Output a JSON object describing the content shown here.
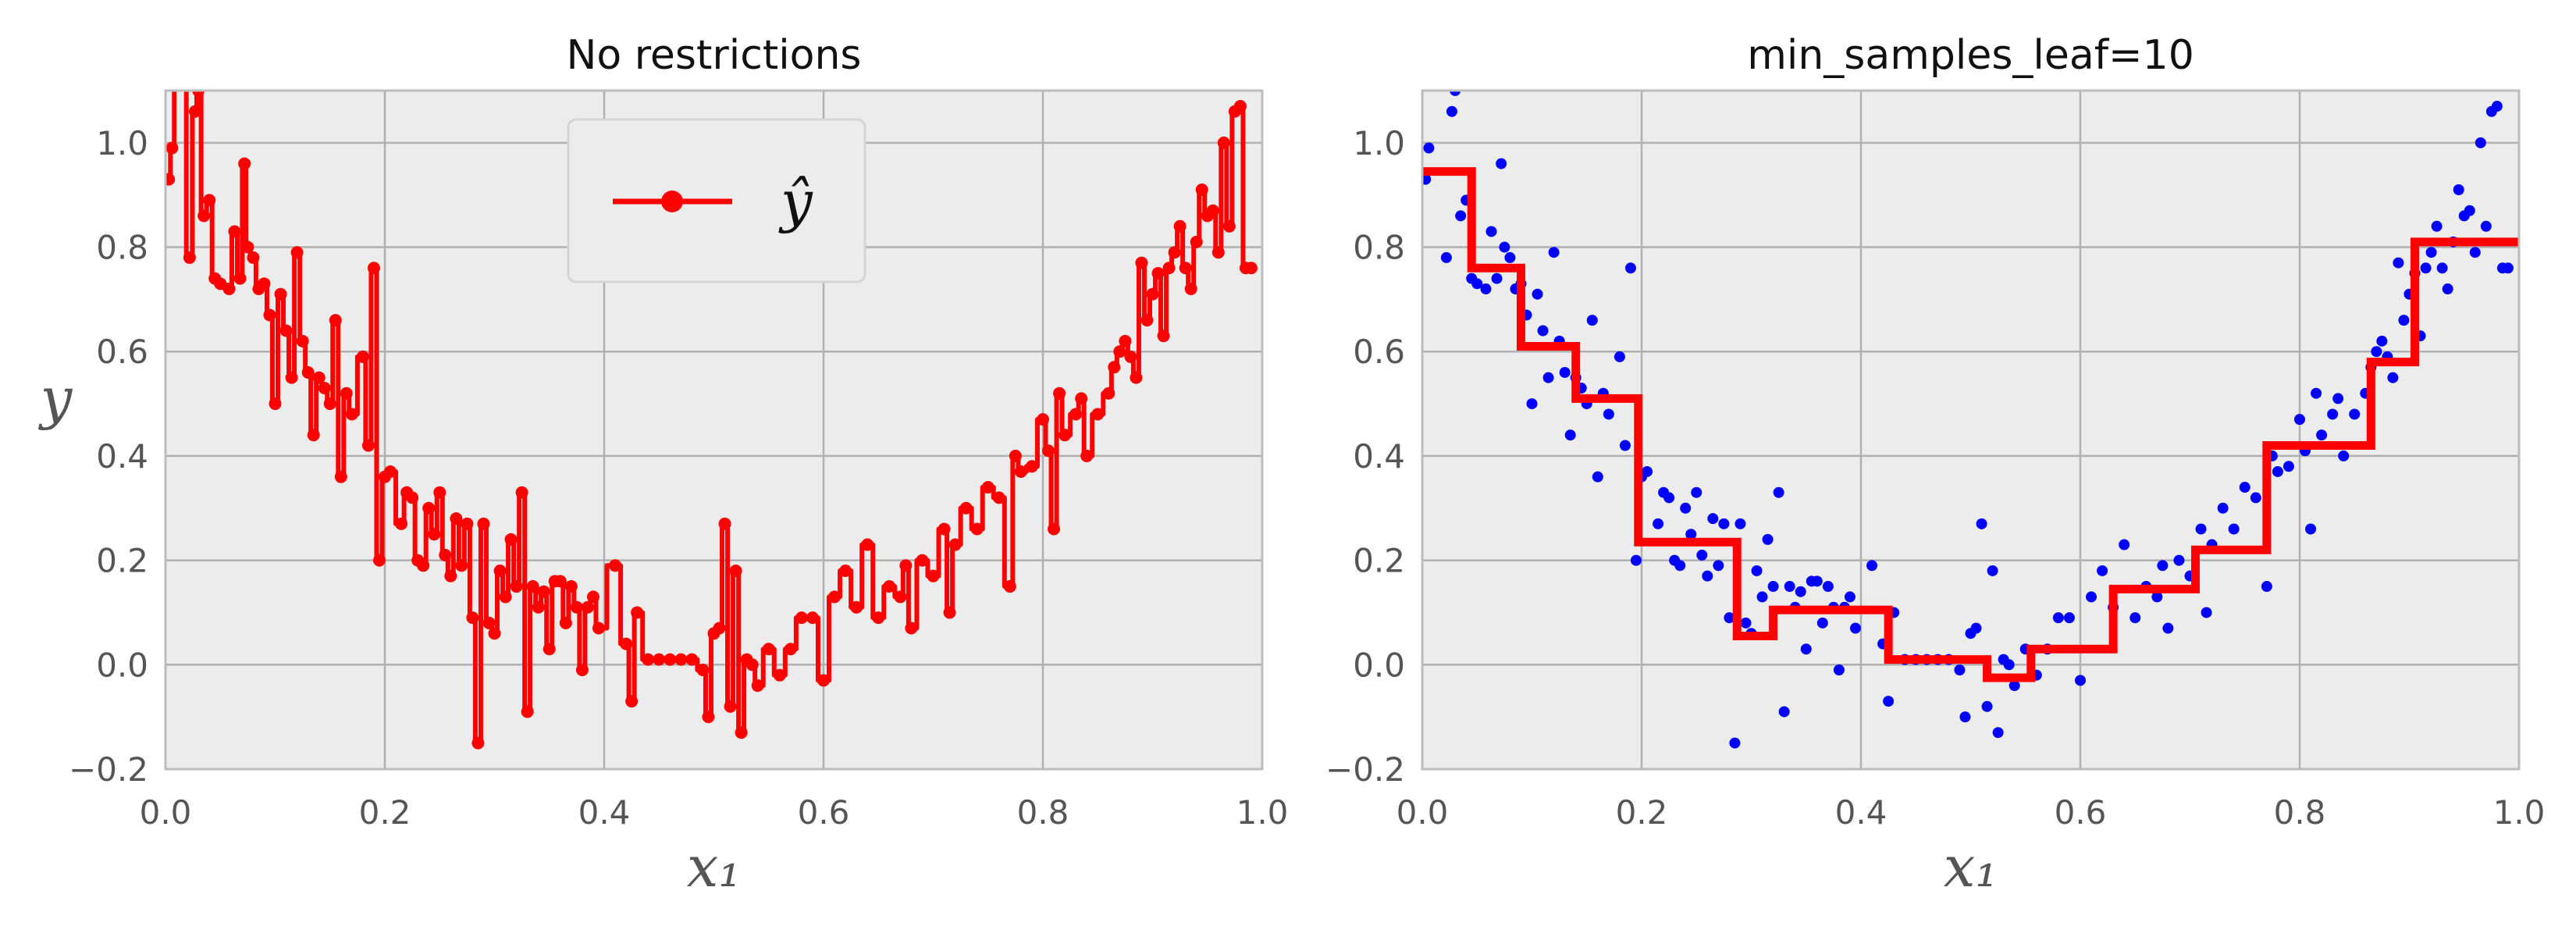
{
  "chart_data": [
    {
      "type": "scatter",
      "title": "No restrictions",
      "xlabel": "x₁",
      "ylabel": "y",
      "xlim": [
        0.0,
        1.0
      ],
      "ylim": [
        -0.2,
        1.1
      ],
      "xticks": [
        "0.0",
        "0.2",
        "0.4",
        "0.6",
        "0.8",
        "1.0"
      ],
      "xtick_values": [
        0.0,
        0.2,
        0.4,
        0.6,
        0.8,
        1.0
      ],
      "yticks": [
        "−0.2",
        "0.0",
        "0.2",
        "0.4",
        "0.6",
        "0.8",
        "1.0"
      ],
      "ytick_values": [
        -0.2,
        0.0,
        0.2,
        0.4,
        0.6,
        0.8,
        1.0
      ],
      "grid": true,
      "legend": {
        "placement": "upper-center",
        "entries": [
          "ŷ"
        ]
      },
      "scatter_color": "#0000ff",
      "line_color": "#ff0000",
      "points": [
        [
          0.003,
          0.93
        ],
        [
          0.006,
          0.99
        ],
        [
          0.01,
          1.12
        ],
        [
          0.016,
          1.15
        ],
        [
          0.022,
          0.78
        ],
        [
          0.027,
          1.06
        ],
        [
          0.03,
          1.1
        ],
        [
          0.035,
          0.86
        ],
        [
          0.04,
          0.89
        ],
        [
          0.045,
          0.74
        ],
        [
          0.05,
          0.73
        ],
        [
          0.058,
          0.72
        ],
        [
          0.063,
          0.83
        ],
        [
          0.068,
          0.74
        ],
        [
          0.072,
          0.96
        ],
        [
          0.075,
          0.8
        ],
        [
          0.08,
          0.78
        ],
        [
          0.085,
          0.72
        ],
        [
          0.09,
          0.73
        ],
        [
          0.095,
          0.67
        ],
        [
          0.1,
          0.5
        ],
        [
          0.105,
          0.71
        ],
        [
          0.11,
          0.64
        ],
        [
          0.115,
          0.55
        ],
        [
          0.12,
          0.79
        ],
        [
          0.125,
          0.62
        ],
        [
          0.13,
          0.56
        ],
        [
          0.135,
          0.44
        ],
        [
          0.14,
          0.55
        ],
        [
          0.145,
          0.53
        ],
        [
          0.15,
          0.5
        ],
        [
          0.155,
          0.66
        ],
        [
          0.16,
          0.36
        ],
        [
          0.165,
          0.52
        ],
        [
          0.17,
          0.48
        ],
        [
          0.18,
          0.59
        ],
        [
          0.185,
          0.42
        ],
        [
          0.19,
          0.76
        ],
        [
          0.195,
          0.2
        ],
        [
          0.2,
          0.36
        ],
        [
          0.205,
          0.37
        ],
        [
          0.215,
          0.27
        ],
        [
          0.22,
          0.33
        ],
        [
          0.225,
          0.32
        ],
        [
          0.23,
          0.2
        ],
        [
          0.235,
          0.19
        ],
        [
          0.24,
          0.3
        ],
        [
          0.245,
          0.25
        ],
        [
          0.25,
          0.33
        ],
        [
          0.255,
          0.21
        ],
        [
          0.26,
          0.17
        ],
        [
          0.265,
          0.28
        ],
        [
          0.27,
          0.19
        ],
        [
          0.275,
          0.27
        ],
        [
          0.28,
          0.09
        ],
        [
          0.285,
          -0.15
        ],
        [
          0.29,
          0.27
        ],
        [
          0.295,
          0.08
        ],
        [
          0.3,
          0.06
        ],
        [
          0.305,
          0.18
        ],
        [
          0.31,
          0.13
        ],
        [
          0.315,
          0.24
        ],
        [
          0.32,
          0.15
        ],
        [
          0.325,
          0.33
        ],
        [
          0.33,
          -0.09
        ],
        [
          0.335,
          0.15
        ],
        [
          0.34,
          0.11
        ],
        [
          0.345,
          0.14
        ],
        [
          0.35,
          0.03
        ],
        [
          0.355,
          0.16
        ],
        [
          0.36,
          0.16
        ],
        [
          0.365,
          0.08
        ],
        [
          0.37,
          0.15
        ],
        [
          0.375,
          0.11
        ],
        [
          0.38,
          -0.01
        ],
        [
          0.385,
          0.11
        ],
        [
          0.39,
          0.13
        ],
        [
          0.395,
          0.07
        ],
        [
          0.41,
          0.19
        ],
        [
          0.42,
          0.04
        ],
        [
          0.425,
          -0.07
        ],
        [
          0.43,
          0.1
        ],
        [
          0.44,
          0.01
        ],
        [
          0.45,
          0.01
        ],
        [
          0.46,
          0.01
        ],
        [
          0.47,
          0.01
        ],
        [
          0.48,
          0.01
        ],
        [
          0.49,
          -0.01
        ],
        [
          0.495,
          -0.1
        ],
        [
          0.5,
          0.06
        ],
        [
          0.505,
          0.07
        ],
        [
          0.51,
          0.27
        ],
        [
          0.515,
          -0.08
        ],
        [
          0.52,
          0.18
        ],
        [
          0.525,
          -0.13
        ],
        [
          0.53,
          0.01
        ],
        [
          0.535,
          0.0
        ],
        [
          0.54,
          -0.04
        ],
        [
          0.55,
          0.03
        ],
        [
          0.56,
          -0.02
        ],
        [
          0.57,
          0.03
        ],
        [
          0.58,
          0.09
        ],
        [
          0.59,
          0.09
        ],
        [
          0.6,
          -0.03
        ],
        [
          0.61,
          0.13
        ],
        [
          0.62,
          0.18
        ],
        [
          0.63,
          0.11
        ],
        [
          0.64,
          0.23
        ],
        [
          0.65,
          0.09
        ],
        [
          0.66,
          0.15
        ],
        [
          0.67,
          0.13
        ],
        [
          0.675,
          0.19
        ],
        [
          0.68,
          0.07
        ],
        [
          0.69,
          0.2
        ],
        [
          0.7,
          0.17
        ],
        [
          0.71,
          0.26
        ],
        [
          0.715,
          0.1
        ],
        [
          0.72,
          0.23
        ],
        [
          0.73,
          0.3
        ],
        [
          0.74,
          0.26
        ],
        [
          0.75,
          0.34
        ],
        [
          0.76,
          0.32
        ],
        [
          0.77,
          0.15
        ],
        [
          0.775,
          0.4
        ],
        [
          0.78,
          0.37
        ],
        [
          0.79,
          0.38
        ],
        [
          0.8,
          0.47
        ],
        [
          0.805,
          0.41
        ],
        [
          0.81,
          0.26
        ],
        [
          0.815,
          0.52
        ],
        [
          0.82,
          0.44
        ],
        [
          0.83,
          0.48
        ],
        [
          0.835,
          0.51
        ],
        [
          0.84,
          0.4
        ],
        [
          0.85,
          0.48
        ],
        [
          0.86,
          0.52
        ],
        [
          0.865,
          0.57
        ],
        [
          0.87,
          0.6
        ],
        [
          0.875,
          0.62
        ],
        [
          0.88,
          0.59
        ],
        [
          0.885,
          0.55
        ],
        [
          0.89,
          0.77
        ],
        [
          0.895,
          0.66
        ],
        [
          0.9,
          0.71
        ],
        [
          0.905,
          0.75
        ],
        [
          0.91,
          0.63
        ],
        [
          0.915,
          0.76
        ],
        [
          0.92,
          0.79
        ],
        [
          0.925,
          0.84
        ],
        [
          0.93,
          0.76
        ],
        [
          0.935,
          0.72
        ],
        [
          0.94,
          0.81
        ],
        [
          0.945,
          0.91
        ],
        [
          0.95,
          0.86
        ],
        [
          0.955,
          0.87
        ],
        [
          0.96,
          0.79
        ],
        [
          0.965,
          1.0
        ],
        [
          0.97,
          0.84
        ],
        [
          0.975,
          1.06
        ],
        [
          0.98,
          1.07
        ],
        [
          0.985,
          0.76
        ],
        [
          0.99,
          0.76
        ]
      ],
      "prediction_line": "step-through-points"
    },
    {
      "type": "scatter",
      "title": "min_samples_leaf=10",
      "xlabel": "x₁",
      "xlim": [
        0.0,
        1.0
      ],
      "ylim": [
        -0.2,
        1.1
      ],
      "xticks": [
        "0.0",
        "0.2",
        "0.4",
        "0.6",
        "0.8",
        "1.0"
      ],
      "xtick_values": [
        0.0,
        0.2,
        0.4,
        0.6,
        0.8,
        1.0
      ],
      "yticks": [
        "−0.2",
        "0.0",
        "0.2",
        "0.4",
        "0.6",
        "0.8",
        "1.0"
      ],
      "ytick_values": [
        -0.2,
        0.0,
        0.2,
        0.4,
        0.6,
        0.8,
        1.0
      ],
      "grid": true,
      "scatter_color": "#0000ff",
      "line_color": "#ff0000",
      "steps": [
        {
          "x0": 0.0,
          "x1": 0.045,
          "y": 0.945
        },
        {
          "x0": 0.045,
          "x1": 0.09,
          "y": 0.76
        },
        {
          "x0": 0.09,
          "x1": 0.14,
          "y": 0.61
        },
        {
          "x0": 0.14,
          "x1": 0.197,
          "y": 0.51
        },
        {
          "x0": 0.197,
          "x1": 0.287,
          "y": 0.235
        },
        {
          "x0": 0.287,
          "x1": 0.32,
          "y": 0.055
        },
        {
          "x0": 0.32,
          "x1": 0.425,
          "y": 0.105
        },
        {
          "x0": 0.425,
          "x1": 0.515,
          "y": 0.01
        },
        {
          "x0": 0.515,
          "x1": 0.555,
          "y": -0.025
        },
        {
          "x0": 0.555,
          "x1": 0.63,
          "y": 0.03
        },
        {
          "x0": 0.63,
          "x1": 0.705,
          "y": 0.145
        },
        {
          "x0": 0.705,
          "x1": 0.77,
          "y": 0.22
        },
        {
          "x0": 0.77,
          "x1": 0.865,
          "y": 0.42
        },
        {
          "x0": 0.865,
          "x1": 0.905,
          "y": 0.58
        },
        {
          "x0": 0.905,
          "x1": 1.0,
          "y": 0.81
        }
      ]
    }
  ]
}
